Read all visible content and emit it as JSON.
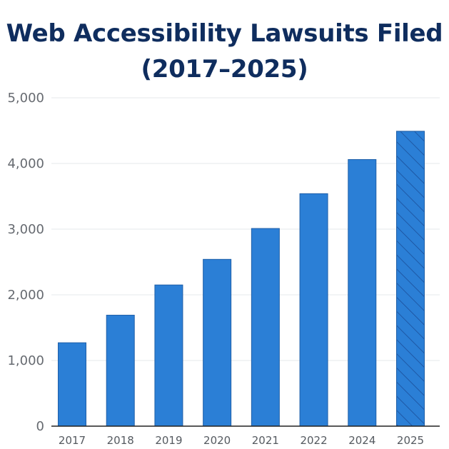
{
  "chart_data": {
    "type": "bar",
    "title_line1": "Web Accessibility Lawsuits Filed",
    "title_line2": "(2017–2025)",
    "categories": [
      "2017",
      "2018",
      "2019",
      "2020",
      "2021",
      "2022",
      "2024",
      "2025"
    ],
    "values": [
      1270,
      1690,
      2150,
      2540,
      3010,
      3540,
      4060,
      4490
    ],
    "projected": [
      false,
      false,
      false,
      false,
      false,
      false,
      false,
      true
    ],
    "ylim": [
      0,
      5000
    ],
    "yticks": [
      0,
      1000,
      2000,
      3000,
      4000,
      5000
    ],
    "ytick_labels": [
      "0",
      "1,000",
      "2,000",
      "3,000",
      "4,000",
      "5,000"
    ],
    "xlabel": "",
    "ylabel": "",
    "grid": true,
    "bar_color": "#2b7fd6",
    "bar_edge_color": "#1f5fa8",
    "hatch_color": "#1a4f9a",
    "title_color": "#0f2d5e"
  }
}
